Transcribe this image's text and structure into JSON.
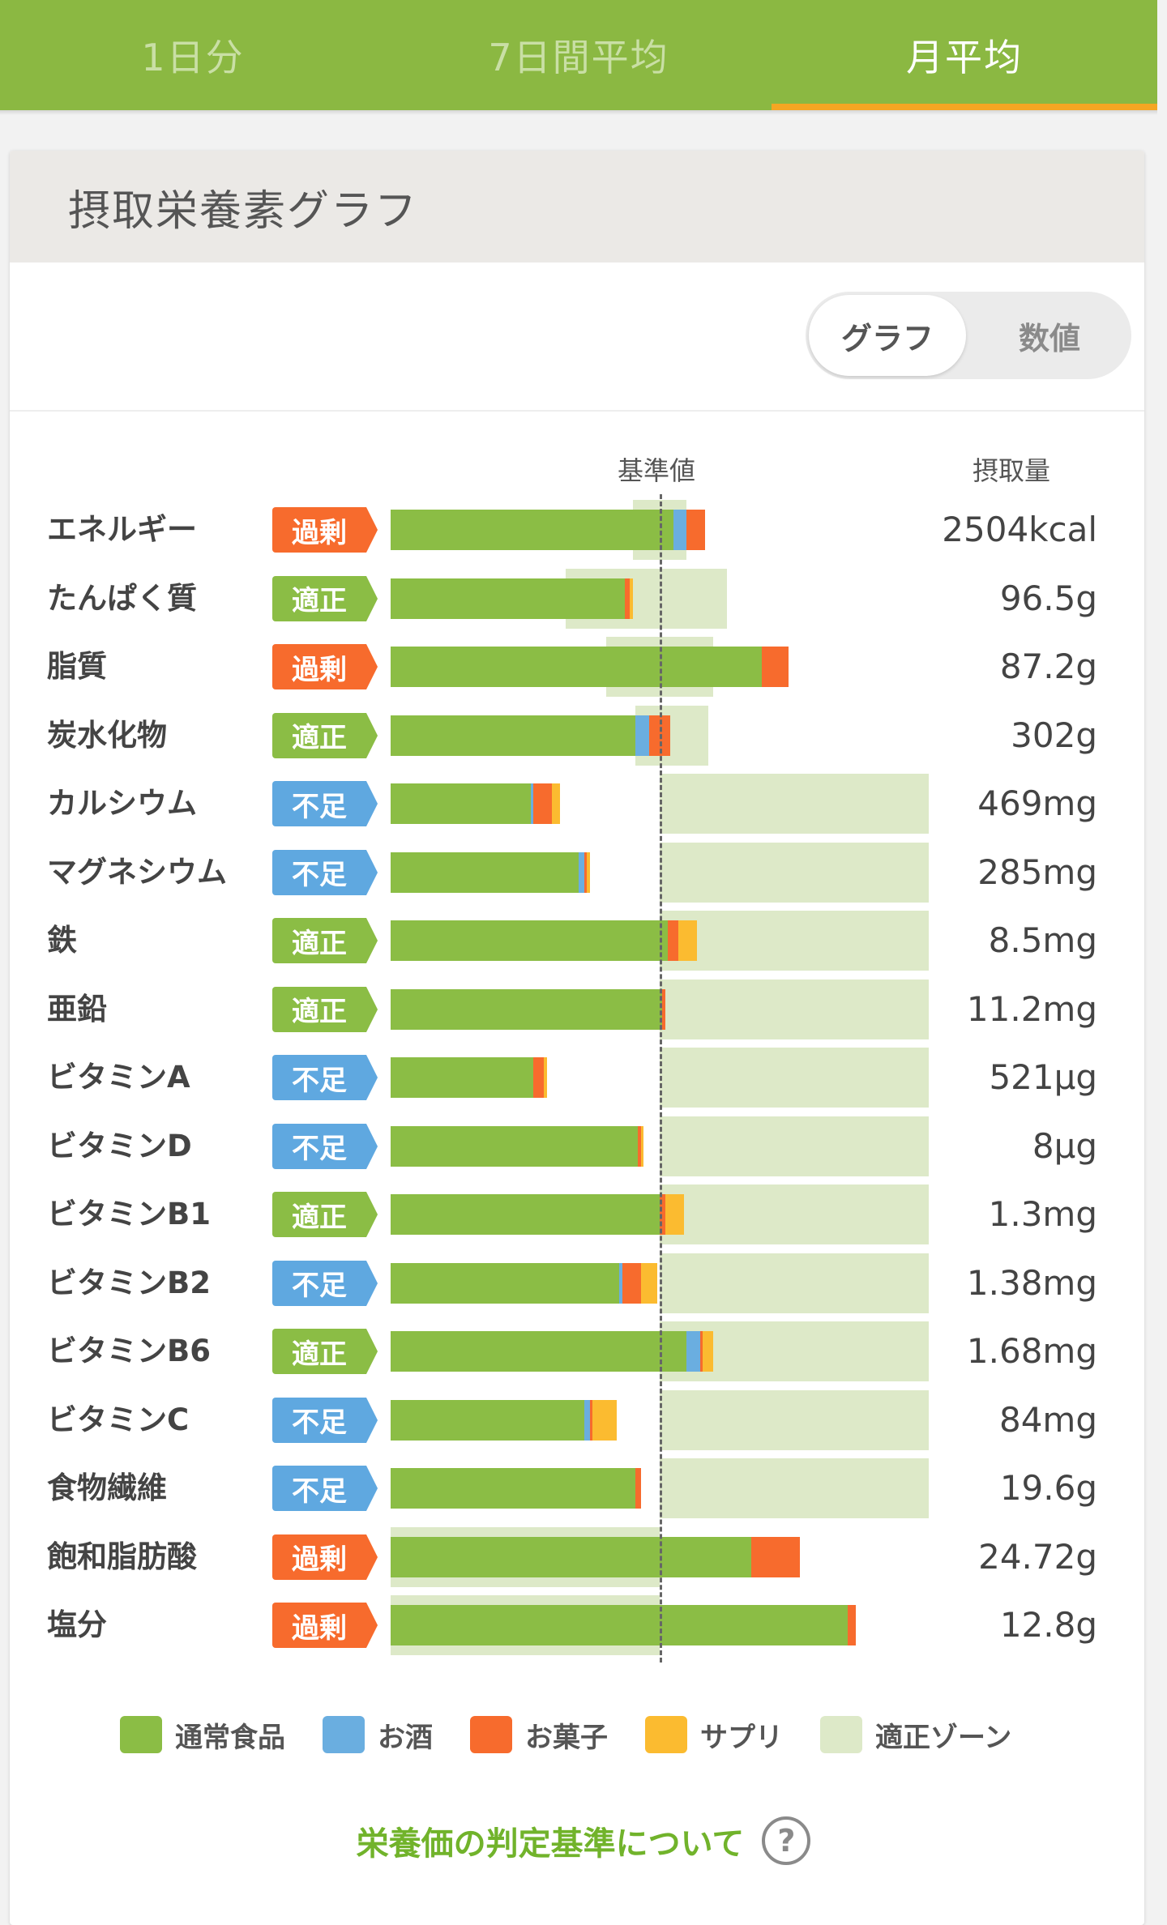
{
  "tabs": [
    {
      "label": "1日分",
      "active": false
    },
    {
      "label": "7日間平均",
      "active": false
    },
    {
      "label": "月平均",
      "active": true
    }
  ],
  "card": {
    "title": "摂取栄養素グラフ"
  },
  "toggle": {
    "graph_label": "グラフ",
    "value_label": "数値",
    "selected": "グラフ"
  },
  "chart_data": {
    "type": "bar",
    "orientation": "horizontal",
    "stacked": true,
    "reference_label": "基準値",
    "value_header": "摂取量",
    "unit": "% of reference value",
    "xlim": [
      0,
      200
    ],
    "colors": {
      "通常食品": "#8bbd45",
      "お酒": "#6aaee0",
      "お菓子": "#f76b2d",
      "サプリ": "#fbbb30",
      "適正ゾーン": "#dde9c8",
      "badge_過剰": "#f76b2d",
      "badge_適正": "#8bbd45",
      "badge_不足": "#5fa8e0"
    },
    "legend": [
      "通常食品",
      "お酒",
      "お菓子",
      "サプリ",
      "適正ゾーン"
    ],
    "legend_position": "bottom",
    "rows": [
      {
        "name": "エネルギー",
        "status": "過剰",
        "value": "2504kcal",
        "segments": {
          "通常食品": 105,
          "お酒": 5,
          "お菓子": 7,
          "サプリ": 0
        },
        "zone": [
          90,
          110
        ]
      },
      {
        "name": "たんぱく質",
        "status": "適正",
        "value": "96.5g",
        "segments": {
          "通常食品": 87,
          "お酒": 0,
          "お菓子": 2,
          "サプリ": 1
        },
        "zone": [
          65,
          125
        ]
      },
      {
        "name": "脂質",
        "status": "過剰",
        "value": "87.2g",
        "segments": {
          "通常食品": 138,
          "お酒": 0,
          "お菓子": 10,
          "サプリ": 0
        },
        "zone": [
          80,
          120
        ]
      },
      {
        "name": "炭水化物",
        "status": "適正",
        "value": "302g",
        "segments": {
          "通常食品": 91,
          "お酒": 5,
          "お菓子": 8,
          "サプリ": 0
        },
        "zone": [
          91,
          118
        ]
      },
      {
        "name": "カルシウム",
        "status": "不足",
        "value": "469mg",
        "segments": {
          "通常食品": 52,
          "お酒": 1,
          "お菓子": 7,
          "サプリ": 3
        },
        "zone": [
          100,
          200
        ]
      },
      {
        "name": "マグネシウム",
        "status": "不足",
        "value": "285mg",
        "segments": {
          "通常食品": 70,
          "お酒": 2,
          "お菓子": 1,
          "サプリ": 1
        },
        "zone": [
          100,
          200
        ]
      },
      {
        "name": "鉄",
        "status": "適正",
        "value": "8.5mg",
        "segments": {
          "通常食品": 103,
          "お酒": 0,
          "お菓子": 4,
          "サプリ": 7
        },
        "zone": [
          100,
          200
        ]
      },
      {
        "name": "亜鉛",
        "status": "適正",
        "value": "11.2mg",
        "segments": {
          "通常食品": 101,
          "お酒": 0,
          "お菓子": 1,
          "サプリ": 0
        },
        "zone": [
          100,
          200
        ]
      },
      {
        "name": "ビタミンA",
        "status": "不足",
        "value": "521μg",
        "segments": {
          "通常食品": 53,
          "お酒": 0,
          "お菓子": 4,
          "サプリ": 1
        },
        "zone": [
          100,
          200
        ]
      },
      {
        "name": "ビタミンD",
        "status": "不足",
        "value": "8μg",
        "segments": {
          "通常食品": 92,
          "お酒": 0,
          "お菓子": 1,
          "サプリ": 1
        },
        "zone": [
          100,
          200
        ]
      },
      {
        "name": "ビタミンB1",
        "status": "適正",
        "value": "1.3mg",
        "segments": {
          "通常食品": 100,
          "お酒": 0,
          "お菓子": 2,
          "サプリ": 7
        },
        "zone": [
          100,
          200
        ]
      },
      {
        "name": "ビタミンB2",
        "status": "不足",
        "value": "1.38mg",
        "segments": {
          "通常食品": 85,
          "お酒": 1,
          "お菓子": 7,
          "サプリ": 6
        },
        "zone": [
          100,
          200
        ]
      },
      {
        "name": "ビタミンB6",
        "status": "適正",
        "value": "1.68mg",
        "segments": {
          "通常食品": 110,
          "お酒": 5,
          "お菓子": 1,
          "サプリ": 4
        },
        "zone": [
          100,
          200
        ]
      },
      {
        "name": "ビタミンC",
        "status": "不足",
        "value": "84mg",
        "segments": {
          "通常食品": 72,
          "お酒": 2,
          "お菓子": 1,
          "サプリ": 9
        },
        "zone": [
          100,
          200
        ]
      },
      {
        "name": "食物繊維",
        "status": "不足",
        "value": "19.6g",
        "segments": {
          "通常食品": 91,
          "お酒": 0,
          "お菓子": 2,
          "サプリ": 0
        },
        "zone": [
          100,
          200
        ]
      },
      {
        "name": "飽和脂肪酸",
        "status": "過剰",
        "value": "24.72g",
        "segments": {
          "通常食品": 134,
          "お酒": 0,
          "お菓子": 18,
          "サプリ": 0
        },
        "zone": [
          0,
          100
        ]
      },
      {
        "name": "塩分",
        "status": "過剰",
        "value": "12.8g",
        "segments": {
          "通常食品": 170,
          "お酒": 0,
          "お菓子": 3,
          "サプリ": 0
        },
        "zone": [
          0,
          100
        ]
      }
    ]
  },
  "footer": {
    "help_link": "栄養価の判定基準について",
    "help_icon": "question-circle-icon",
    "help_glyph": "?"
  }
}
